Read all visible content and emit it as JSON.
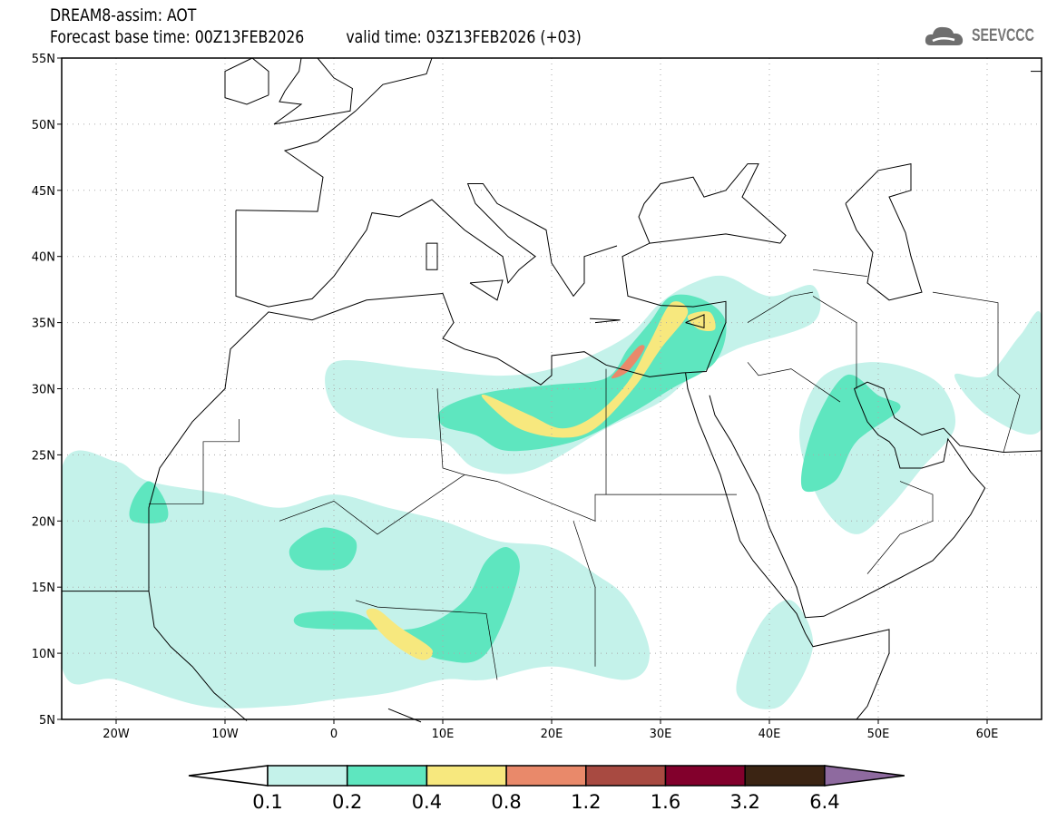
{
  "title": {
    "line1": "DREAM8-assim: AOT",
    "base_time": "Forecast base time: 00Z13FEB2026",
    "valid_time": "valid time: 03Z13FEB2026 (+03)"
  },
  "logo": {
    "text": "SEEVCCC"
  },
  "map": {
    "lon_range": [
      -25,
      65
    ],
    "lat_range": [
      5,
      55
    ],
    "lat_labels": [
      "5N",
      "10N",
      "15N",
      "20N",
      "25N",
      "30N",
      "35N",
      "40N",
      "45N",
      "50N",
      "55N"
    ],
    "lon_labels": [
      "20W",
      "10W",
      "0",
      "10E",
      "20E",
      "30E",
      "40E",
      "50E",
      "60E"
    ]
  },
  "colorbar": {
    "labels": [
      "0.1",
      "0.2",
      "0.4",
      "0.8",
      "1.2",
      "1.6",
      "3.2",
      "6.4"
    ],
    "colors": [
      "#ffffff",
      "#c4f2ea",
      "#5ee6bf",
      "#f7e87e",
      "#e9896a",
      "#a84a41",
      "#82002c",
      "#3b2413",
      "#8e6a9f"
    ]
  }
}
